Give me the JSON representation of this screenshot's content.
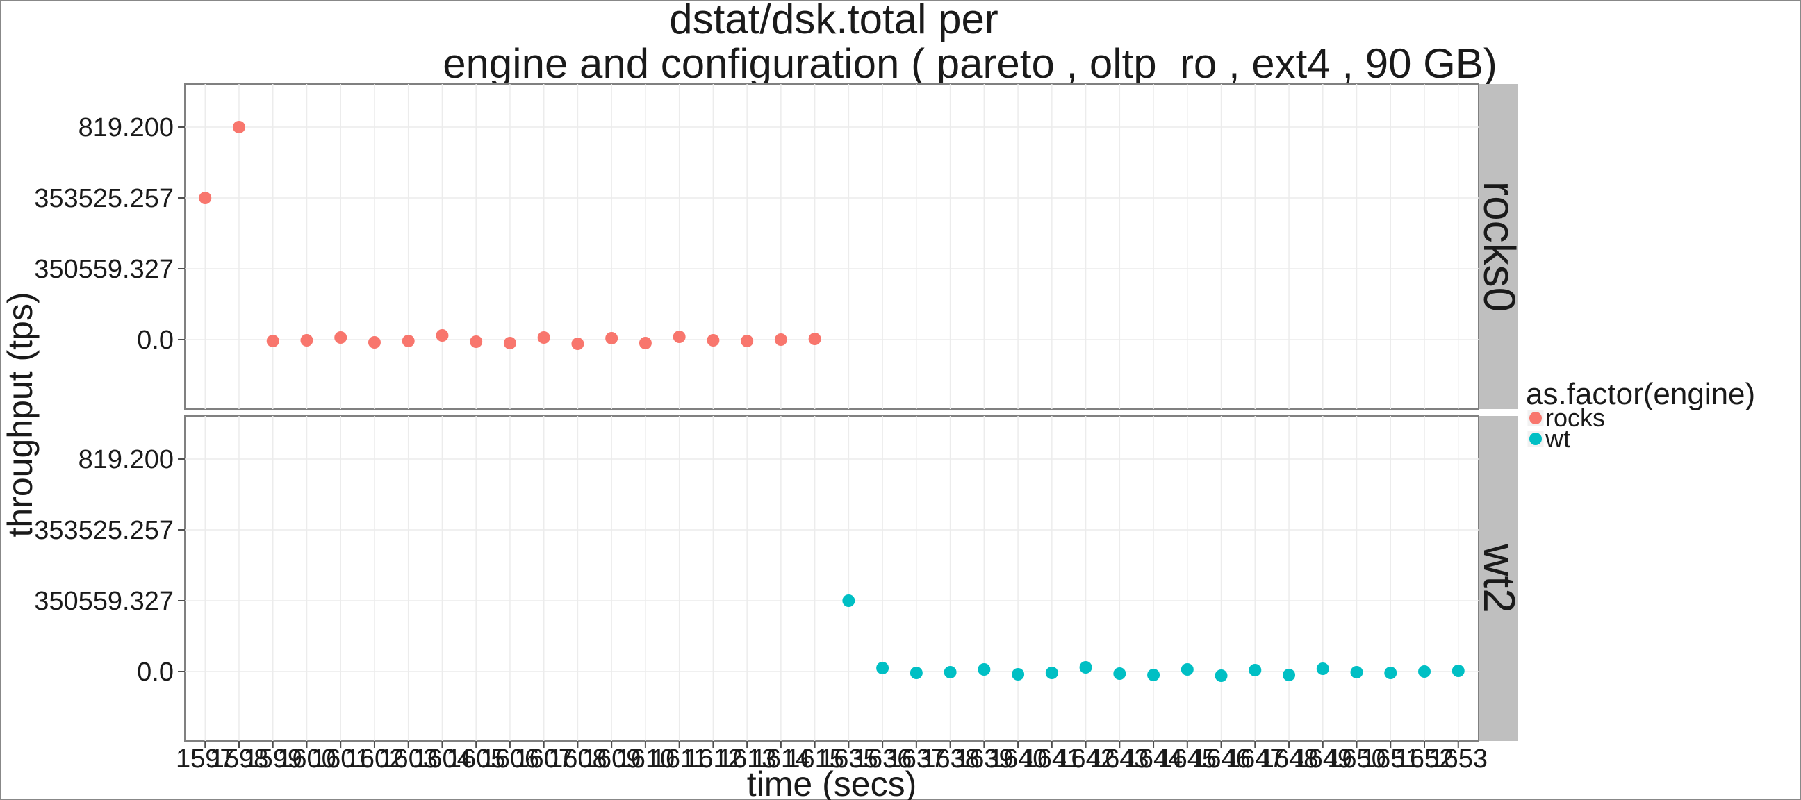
{
  "chart_data": {
    "type": "scatter",
    "title_line1": "dstat/dsk.total per",
    "title_line2": "engine and configuration ( pareto , oltp_ro , ext4 ,  90 GB)",
    "xlabel": "time (secs)",
    "ylabel": "throughput (tps)",
    "y_categories": [
      "0.0",
      "350559.327",
      "353525.257",
      "819.200"
    ],
    "x_tick_labels": [
      "1597",
      "1598",
      "1599",
      "1600",
      "1601",
      "1602",
      "1603",
      "1604",
      "1605",
      "1606",
      "1607",
      "1608",
      "1609",
      "1610",
      "1611",
      "1612",
      "1613",
      "1614",
      "1615",
      "1635",
      "1636",
      "1637",
      "1638",
      "1639",
      "1640",
      "1641",
      "1642",
      "1643",
      "1644",
      "1645",
      "1646",
      "1647",
      "1648",
      "1649",
      "1650",
      "1651",
      "1652",
      "1653"
    ],
    "legend": {
      "title": "as.factor(engine)",
      "position": "right",
      "entries": [
        {
          "label": "rocks",
          "color": "#F8766D"
        },
        {
          "label": "wt",
          "color": "#00BFC4"
        }
      ]
    },
    "grid": true,
    "panels": [
      {
        "strip": "rocks0",
        "engine": "rocks",
        "color": "#F8766D",
        "points": [
          {
            "x": "1597",
            "y": "353525.257"
          },
          {
            "x": "1598",
            "y": "819.200"
          },
          {
            "x": "1599",
            "y": "0.0"
          },
          {
            "x": "1600",
            "y": "0.0"
          },
          {
            "x": "1601",
            "y": "0.0"
          },
          {
            "x": "1602",
            "y": "0.0"
          },
          {
            "x": "1603",
            "y": "0.0"
          },
          {
            "x": "1604",
            "y": "0.0"
          },
          {
            "x": "1605",
            "y": "0.0"
          },
          {
            "x": "1606",
            "y": "0.0"
          },
          {
            "x": "1607",
            "y": "0.0"
          },
          {
            "x": "1608",
            "y": "0.0"
          },
          {
            "x": "1609",
            "y": "0.0"
          },
          {
            "x": "1610",
            "y": "0.0"
          },
          {
            "x": "1611",
            "y": "0.0"
          },
          {
            "x": "1612",
            "y": "0.0"
          },
          {
            "x": "1613",
            "y": "0.0"
          },
          {
            "x": "1614",
            "y": "0.0"
          },
          {
            "x": "1615",
            "y": "0.0"
          }
        ]
      },
      {
        "strip": "wt2",
        "engine": "wt",
        "color": "#00BFC4",
        "points": [
          {
            "x": "1635",
            "y": "350559.327"
          },
          {
            "x": "1636",
            "y": "0.0"
          },
          {
            "x": "1637",
            "y": "0.0"
          },
          {
            "x": "1638",
            "y": "0.0"
          },
          {
            "x": "1639",
            "y": "0.0"
          },
          {
            "x": "1640",
            "y": "0.0"
          },
          {
            "x": "1641",
            "y": "0.0"
          },
          {
            "x": "1642",
            "y": "0.0"
          },
          {
            "x": "1643",
            "y": "0.0"
          },
          {
            "x": "1644",
            "y": "0.0"
          },
          {
            "x": "1645",
            "y": "0.0"
          },
          {
            "x": "1646",
            "y": "0.0"
          },
          {
            "x": "1647",
            "y": "0.0"
          },
          {
            "x": "1648",
            "y": "0.0"
          },
          {
            "x": "1649",
            "y": "0.0"
          },
          {
            "x": "1650",
            "y": "0.0"
          },
          {
            "x": "1651",
            "y": "0.0"
          },
          {
            "x": "1652",
            "y": "0.0"
          },
          {
            "x": "1653",
            "y": "0.0"
          }
        ]
      }
    ]
  }
}
